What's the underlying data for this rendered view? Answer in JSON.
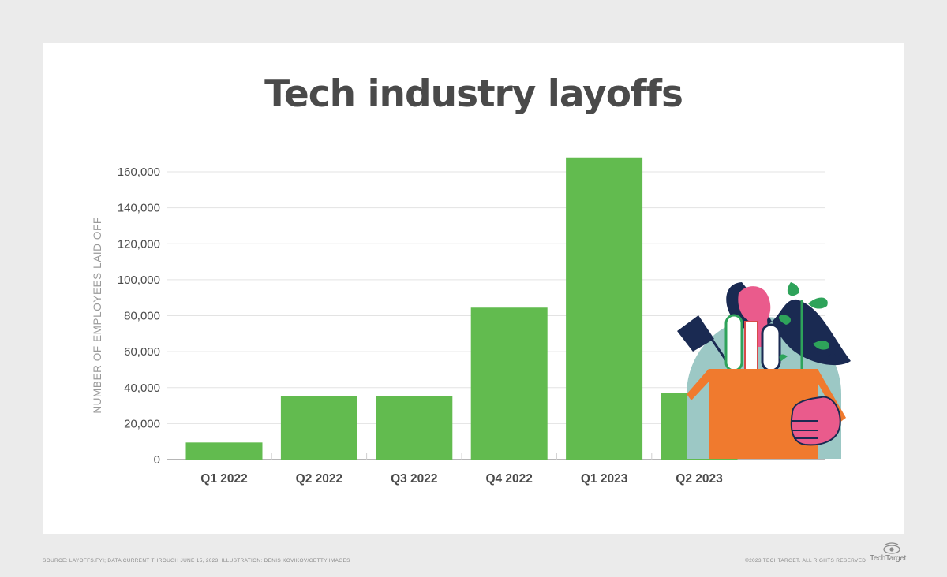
{
  "page": {
    "background": "#ebebeb",
    "card_background": "#ffffff"
  },
  "chart_data": {
    "type": "bar",
    "title": "Tech industry layoffs",
    "ylabel": "NUMBER OF EMPLOYEES LAID OFF",
    "xlabel": "",
    "categories": [
      "Q1 2022",
      "Q2 2022",
      "Q3 2022",
      "Q4 2022",
      "Q1 2023",
      "Q2 2023"
    ],
    "values": [
      9500,
      35500,
      35500,
      84500,
      168000,
      37000
    ],
    "ylim": [
      0,
      160000
    ],
    "yticks": [
      0,
      20000,
      40000,
      60000,
      80000,
      100000,
      120000,
      140000,
      160000
    ],
    "ytick_labels": [
      "0",
      "20,000",
      "40,000",
      "60,000",
      "80,000",
      "100,000",
      "120,000",
      "140,000",
      "160,000"
    ],
    "grid": true,
    "bar_color": "#62bb4f",
    "grid_color": "#e3e3e3",
    "axis_color": "#8a8a8a"
  },
  "footer": {
    "source": "SOURCE: LAYOFFS.FYI; DATA CURRENT THROUGH JUNE 15, 2023; ILLUSTRATION: DENIS KOVIKOV/GETTY IMAGES",
    "copyright": "©2023 TECHTARGET. ALL RIGHTS RESERVED",
    "logo_text": "TechTarget"
  },
  "illustration": {
    "icon": "person-with-box-illustration"
  }
}
